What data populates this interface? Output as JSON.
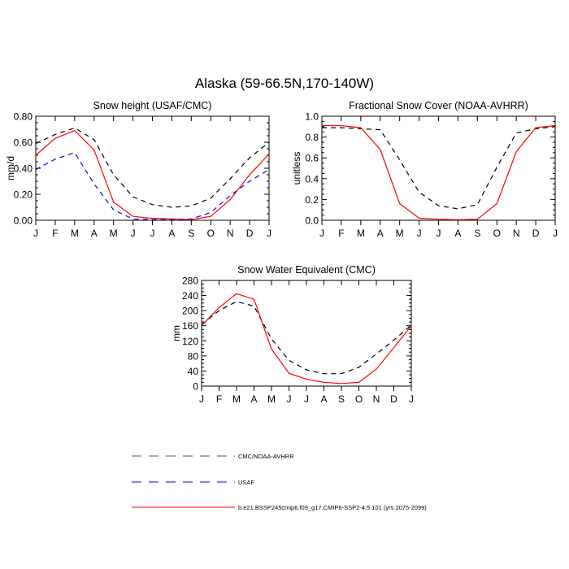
{
  "figure": {
    "title": "Alaska (59-66.5N,170-140W)"
  },
  "legend": {
    "items": [
      {
        "label": "CMC/NOAA-AVHRR",
        "color": "#000000",
        "dash": "dashed"
      },
      {
        "label": "USAF",
        "color": "#0000ff",
        "dash": "dashed"
      },
      {
        "label": "b.e21.BSSP245cmip6.f09_g17.CMIP6-SSP2-4.5.101 (yrs 2075-2099)",
        "color": "#ff0000",
        "dash": "solid"
      }
    ]
  },
  "chart_data": [
    {
      "type": "line",
      "title": "Snow height (USAF/CMC)",
      "ylabel": "mm/d",
      "categories": [
        "J",
        "F",
        "M",
        "A",
        "M",
        "J",
        "J",
        "A",
        "S",
        "O",
        "N",
        "D",
        "J"
      ],
      "ylim": [
        0,
        0.8
      ],
      "yticks": [
        "0.00",
        "0.20",
        "0.40",
        "0.60",
        "0.80"
      ],
      "ytick_values": [
        0,
        0.2,
        0.4,
        0.6,
        0.8
      ],
      "series": [
        {
          "name": "CMC/NOAA-AVHRR",
          "color": "#000000",
          "dash": "dashed",
          "values": [
            0.59,
            0.66,
            0.71,
            0.62,
            0.35,
            0.18,
            0.12,
            0.1,
            0.11,
            0.17,
            0.32,
            0.48,
            0.6
          ]
        },
        {
          "name": "USAF",
          "color": "#0000ff",
          "dash": "dashed",
          "values": [
            0.39,
            0.47,
            0.52,
            0.28,
            0.08,
            0.01,
            0.005,
            0.005,
            0.01,
            0.06,
            0.19,
            0.3,
            0.39
          ]
        },
        {
          "name": "b.e21.BSSP245cmip6.f09_g17.CMIP6-SSP2-4.5.101 (yrs 2075-2099)",
          "color": "#ff0000",
          "dash": "solid",
          "values": [
            0.5,
            0.63,
            0.69,
            0.54,
            0.14,
            0.03,
            0.015,
            0.01,
            0.005,
            0.03,
            0.16,
            0.35,
            0.51
          ]
        }
      ]
    },
    {
      "type": "line",
      "title": "Fractional Snow Cover (NOAA-AVHRR)",
      "ylabel": "unitless",
      "categories": [
        "J",
        "F",
        "M",
        "A",
        "M",
        "J",
        "J",
        "A",
        "S",
        "O",
        "N",
        "D",
        "J"
      ],
      "ylim": [
        0,
        1.0
      ],
      "yticks": [
        "0.0",
        "0.2",
        "0.4",
        "0.6",
        "0.8",
        "1.0"
      ],
      "ytick_values": [
        0,
        0.2,
        0.4,
        0.6,
        0.8,
        1.0
      ],
      "series": [
        {
          "name": "CMC/NOAA-AVHRR",
          "color": "#000000",
          "dash": "dashed",
          "values": [
            0.89,
            0.89,
            0.88,
            0.87,
            0.58,
            0.27,
            0.14,
            0.11,
            0.15,
            0.51,
            0.84,
            0.88,
            0.9
          ]
        },
        {
          "name": "b.e21.BSSP245cmip6.f09_g17.CMIP6-SSP2-4.5.101 (yrs 2075-2099)",
          "color": "#ff0000",
          "dash": "solid",
          "values": [
            0.91,
            0.91,
            0.89,
            0.68,
            0.16,
            0.02,
            0.01,
            0.005,
            0.01,
            0.16,
            0.66,
            0.89,
            0.91
          ]
        }
      ]
    },
    {
      "type": "line",
      "title": "Snow Water Equivalent (CMC)",
      "ylabel": "mm",
      "categories": [
        "J",
        "F",
        "M",
        "A",
        "M",
        "J",
        "J",
        "A",
        "S",
        "O",
        "N",
        "D",
        "J"
      ],
      "ylim": [
        0,
        280
      ],
      "yticks": [
        "0",
        "40",
        "80",
        "120",
        "160",
        "200",
        "240",
        "280"
      ],
      "ytick_values": [
        0,
        40,
        80,
        120,
        160,
        200,
        240,
        280
      ],
      "series": [
        {
          "name": "CMC/NOAA-AVHRR",
          "color": "#000000",
          "dash": "dashed",
          "values": [
            163,
            200,
            224,
            212,
            125,
            68,
            43,
            33,
            33,
            50,
            85,
            122,
            162
          ]
        },
        {
          "name": "b.e21.BSSP245cmip6.f09_g17.CMIP6-SSP2-4.5.101 (yrs 2075-2099)",
          "color": "#ff0000",
          "dash": "solid",
          "values": [
            160,
            208,
            245,
            230,
            98,
            34,
            18,
            10,
            7,
            10,
            45,
            102,
            160
          ]
        }
      ]
    }
  ]
}
